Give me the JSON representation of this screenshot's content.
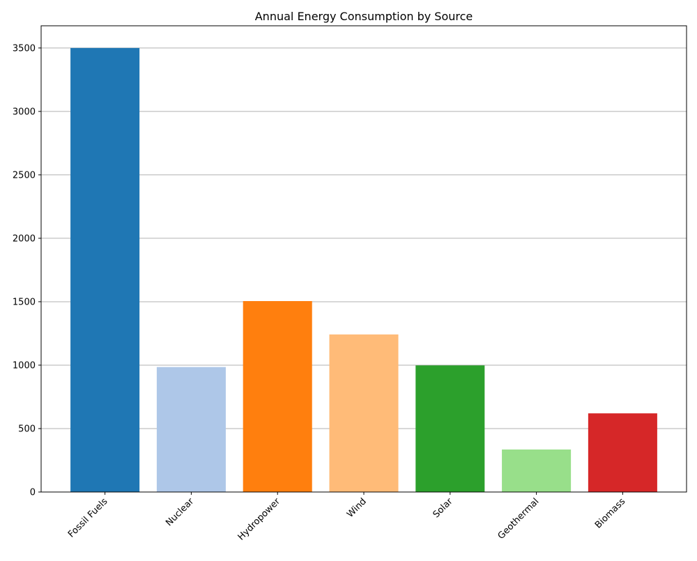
{
  "chart_data": {
    "type": "bar",
    "title": "Annual Energy Consumption by Source",
    "xlabel": "",
    "ylabel": "",
    "categories": [
      "Fossil Fuels",
      "Nuclear",
      "Hydropower",
      "Wind",
      "Solar",
      "Geothermal",
      "Biomass"
    ],
    "values": [
      3500,
      985,
      1505,
      1242,
      998,
      335,
      620
    ],
    "colors": [
      "#1f77b4",
      "#aec7e8",
      "#ff7f0e",
      "#ffbb78",
      "#2ca02c",
      "#98df8a",
      "#d62728"
    ],
    "ylim": [
      0,
      3675
    ],
    "yticks": [
      0,
      500,
      1000,
      1500,
      2000,
      2500,
      3000,
      3500
    ],
    "grid": "y-axis",
    "legend": "none",
    "xtick_rotation": "45"
  }
}
